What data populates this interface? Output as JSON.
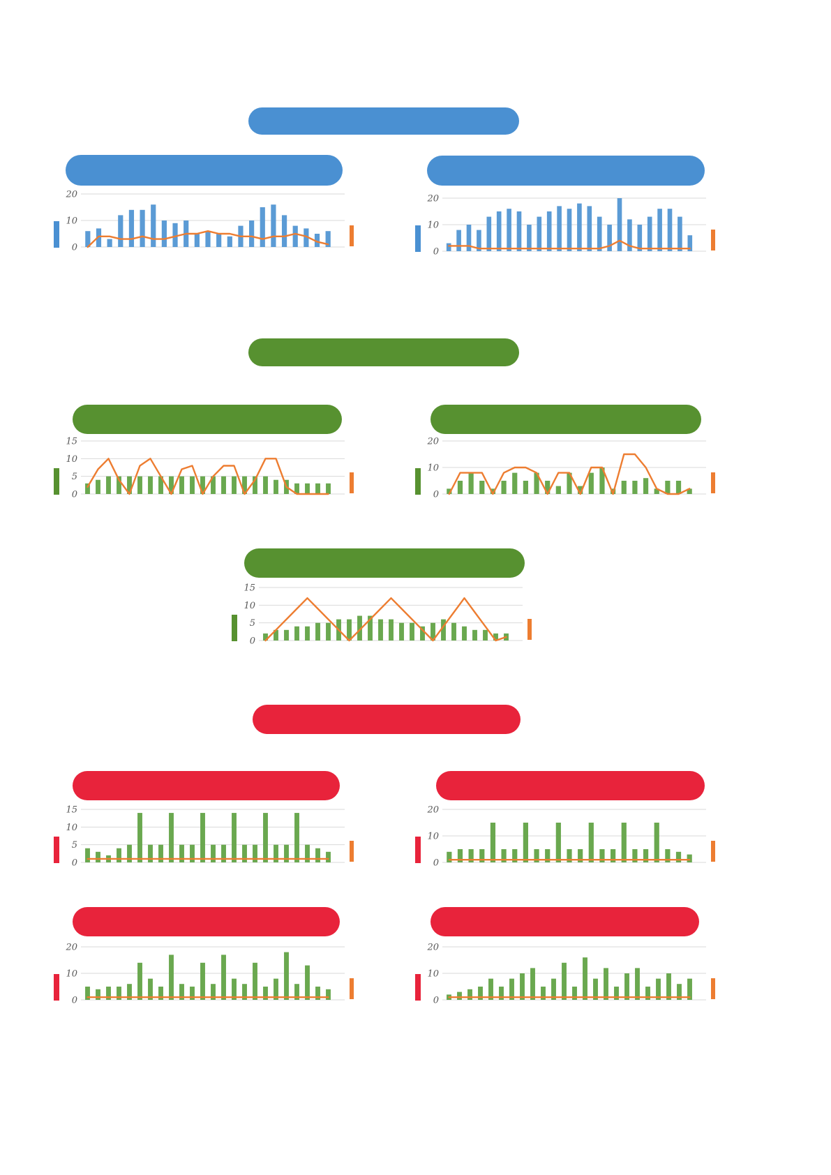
{
  "colors": {
    "blue_pill": "#4a90d2",
    "green_pill": "#579130",
    "red_pill": "#e8233b",
    "bar_blue": "#5b9bd5",
    "bar_green": "#6aa84f",
    "line_orange": "#ed7d31",
    "grid": "#d9d9d9",
    "axis_text": "#595959"
  },
  "sections": [
    {
      "id": "blue-section",
      "main_pill_color": "#4a90d2",
      "sub_pill_colors": [
        "#4a90d2",
        "#4a90d2"
      ]
    },
    {
      "id": "green-section",
      "main_pill_color": "#579130",
      "sub_pill_colors": [
        "#579130",
        "#579130"
      ]
    },
    {
      "id": "green-single-section",
      "main_pill_color": "#579130",
      "sub_pill_colors": []
    },
    {
      "id": "red-section",
      "main_pill_color": "#e8233b",
      "sub_pill_colors": [
        "#e8233b",
        "#e8233b",
        "#e8233b",
        "#e8233b"
      ]
    }
  ],
  "chart_data": [
    {
      "type": "bar",
      "position": "blue-row-left",
      "ymax": 20,
      "yticks": [
        0,
        10,
        20
      ],
      "ytick_labels": [
        "0",
        "10",
        "20"
      ],
      "grid": true,
      "bar_color": "#5b9bd5",
      "line_color": "#ed7d31",
      "left_swatch": "#4a90d2",
      "right_swatch": "#ed7d31",
      "series": [
        {
          "name": "bars",
          "kind": "bar",
          "values": [
            6,
            7,
            3,
            12,
            14,
            14,
            16,
            10,
            9,
            10,
            5,
            6,
            5,
            4,
            8,
            10,
            15,
            16,
            12,
            8,
            7,
            5,
            6
          ]
        },
        {
          "name": "line",
          "kind": "line",
          "values": [
            0,
            4,
            4,
            3,
            3,
            4,
            3,
            3,
            4,
            5,
            5,
            6,
            5,
            5,
            4,
            4,
            3,
            4,
            4,
            5,
            4,
            2,
            1
          ]
        }
      ]
    },
    {
      "type": "bar",
      "position": "blue-row-right",
      "ymax": 20,
      "yticks": [
        0,
        10,
        20
      ],
      "ytick_labels": [
        "0",
        "10",
        "20"
      ],
      "grid": true,
      "bar_color": "#5b9bd5",
      "line_color": "#ed7d31",
      "left_swatch": "#4a90d2",
      "right_swatch": "#ed7d31",
      "series": [
        {
          "name": "bars",
          "kind": "bar",
          "values": [
            3,
            8,
            10,
            8,
            13,
            15,
            16,
            15,
            10,
            13,
            15,
            17,
            16,
            18,
            17,
            13,
            10,
            20,
            12,
            10,
            13,
            16,
            16,
            13,
            6
          ]
        },
        {
          "name": "line",
          "kind": "line",
          "values": [
            2,
            2,
            2,
            1,
            1,
            1,
            1,
            1,
            1,
            1,
            1,
            1,
            1,
            1,
            1,
            1,
            2,
            4,
            2,
            1,
            1,
            1,
            1,
            1,
            1
          ]
        }
      ]
    },
    {
      "type": "bar",
      "position": "green-row-left",
      "ymax": 15,
      "yticks": [
        0,
        5,
        10,
        15
      ],
      "ytick_labels": [
        "0",
        "5",
        "10",
        "15"
      ],
      "grid": true,
      "bar_color": "#6aa84f",
      "line_color": "#ed7d31",
      "left_swatch": "#579130",
      "right_swatch": "#ed7d31",
      "series": [
        {
          "name": "bars",
          "kind": "bar",
          "values": [
            3,
            4,
            5,
            5,
            5,
            5,
            5,
            5,
            5,
            5,
            5,
            5,
            5,
            5,
            5,
            5,
            5,
            5,
            4,
            4,
            3,
            3,
            3,
            3
          ]
        },
        {
          "name": "line",
          "kind": "line",
          "values": [
            2,
            7,
            10,
            4,
            0,
            8,
            10,
            5,
            0,
            7,
            8,
            0,
            5,
            8,
            8,
            0,
            4,
            10,
            10,
            2,
            0,
            0,
            0,
            0
          ]
        }
      ]
    },
    {
      "type": "bar",
      "position": "green-row-right",
      "ymax": 20,
      "yticks": [
        0,
        10,
        20
      ],
      "ytick_labels": [
        "0",
        "10",
        "20"
      ],
      "grid": true,
      "bar_color": "#6aa84f",
      "line_color": "#ed7d31",
      "left_swatch": "#579130",
      "right_swatch": "#ed7d31",
      "series": [
        {
          "name": "bars",
          "kind": "bar",
          "values": [
            2,
            5,
            8,
            5,
            2,
            5,
            8,
            5,
            8,
            5,
            3,
            8,
            3,
            8,
            10,
            2,
            5,
            5,
            6,
            2,
            5,
            5,
            2
          ]
        },
        {
          "name": "line",
          "kind": "line",
          "values": [
            0,
            8,
            8,
            8,
            0,
            8,
            10,
            10,
            8,
            0,
            8,
            8,
            0,
            10,
            10,
            0,
            15,
            15,
            10,
            2,
            0,
            0,
            2
          ]
        }
      ]
    },
    {
      "type": "bar",
      "position": "green-single-center",
      "ymax": 15,
      "yticks": [
        0,
        5,
        10,
        15
      ],
      "ytick_labels": [
        "0",
        "5",
        "10",
        "15"
      ],
      "grid": true,
      "bar_color": "#6aa84f",
      "line_color": "#ed7d31",
      "left_swatch": "#579130",
      "right_swatch": "#ed7d31",
      "series": [
        {
          "name": "bars",
          "kind": "bar",
          "values": [
            2,
            3,
            3,
            4,
            4,
            5,
            5,
            6,
            6,
            7,
            7,
            6,
            6,
            5,
            5,
            4,
            5,
            6,
            5,
            4,
            3,
            3,
            2,
            2
          ]
        },
        {
          "name": "line",
          "kind": "line",
          "values": [
            0,
            3,
            6,
            9,
            12,
            9,
            6,
            3,
            0,
            3,
            6,
            9,
            12,
            9,
            6,
            3,
            0,
            4,
            8,
            12,
            8,
            4,
            0,
            1
          ]
        }
      ]
    },
    {
      "type": "bar",
      "position": "red-row1-left",
      "ymax": 15,
      "yticks": [
        0,
        5,
        10,
        15
      ],
      "ytick_labels": [
        "0",
        "5",
        "10",
        "15"
      ],
      "grid": true,
      "bar_color": "#6aa84f",
      "line_color": "#ed7d31",
      "left_swatch": "#e8233b",
      "right_swatch": "#ed7d31",
      "series": [
        {
          "name": "bars",
          "kind": "bar",
          "values": [
            4,
            3,
            2,
            4,
            5,
            14,
            5,
            5,
            14,
            5,
            5,
            14,
            5,
            5,
            14,
            5,
            5,
            14,
            5,
            5,
            14,
            5,
            4,
            3
          ]
        },
        {
          "name": "line",
          "kind": "line",
          "values": [
            1,
            1,
            1,
            1,
            1,
            1,
            1,
            1,
            1,
            1,
            1,
            1,
            1,
            1,
            1,
            1,
            1,
            1,
            1,
            1,
            1,
            1,
            1,
            1
          ]
        }
      ]
    },
    {
      "type": "bar",
      "position": "red-row1-right",
      "ymax": 20,
      "yticks": [
        0,
        10,
        20
      ],
      "ytick_labels": [
        "0",
        "10",
        "20"
      ],
      "grid": true,
      "bar_color": "#6aa84f",
      "line_color": "#ed7d31",
      "left_swatch": "#e8233b",
      "right_swatch": "#ed7d31",
      "series": [
        {
          "name": "bars",
          "kind": "bar",
          "values": [
            4,
            5,
            5,
            5,
            15,
            5,
            5,
            15,
            5,
            5,
            15,
            5,
            5,
            15,
            5,
            5,
            15,
            5,
            5,
            15,
            5,
            4,
            3
          ]
        },
        {
          "name": "line",
          "kind": "line",
          "values": [
            1,
            1,
            1,
            1,
            1,
            1,
            1,
            1,
            1,
            1,
            1,
            1,
            1,
            1,
            1,
            1,
            1,
            1,
            1,
            1,
            1,
            1,
            1
          ]
        }
      ]
    },
    {
      "type": "bar",
      "position": "red-row2-left",
      "ymax": 20,
      "yticks": [
        0,
        10,
        20
      ],
      "ytick_labels": [
        "0",
        "10",
        "20"
      ],
      "grid": true,
      "bar_color": "#6aa84f",
      "line_color": "#ed7d31",
      "left_swatch": "#e8233b",
      "right_swatch": "#ed7d31",
      "series": [
        {
          "name": "bars",
          "kind": "bar",
          "values": [
            5,
            4,
            5,
            5,
            6,
            14,
            8,
            5,
            17,
            6,
            5,
            14,
            6,
            17,
            8,
            6,
            14,
            5,
            8,
            18,
            6,
            13,
            5,
            4
          ]
        },
        {
          "name": "line",
          "kind": "line",
          "values": [
            1,
            1,
            1,
            1,
            1,
            1,
            1,
            1,
            1,
            1,
            1,
            1,
            1,
            1,
            1,
            1,
            1,
            1,
            1,
            1,
            1,
            1,
            1,
            1
          ]
        }
      ]
    },
    {
      "type": "bar",
      "position": "red-row2-right",
      "ymax": 20,
      "yticks": [
        0,
        10,
        20
      ],
      "ytick_labels": [
        "0",
        "10",
        "20"
      ],
      "grid": true,
      "bar_color": "#6aa84f",
      "line_color": "#ed7d31",
      "left_swatch": "#e8233b",
      "right_swatch": "#ed7d31",
      "series": [
        {
          "name": "bars",
          "kind": "bar",
          "values": [
            2,
            3,
            4,
            5,
            8,
            5,
            8,
            10,
            12,
            5,
            8,
            14,
            5,
            16,
            8,
            12,
            5,
            10,
            12,
            5,
            8,
            10,
            6,
            8
          ]
        },
        {
          "name": "line",
          "kind": "line",
          "values": [
            1,
            1,
            1,
            1,
            1,
            1,
            1,
            1,
            1,
            1,
            1,
            1,
            1,
            1,
            1,
            1,
            1,
            1,
            1,
            1,
            1,
            1,
            1,
            1
          ]
        }
      ]
    }
  ]
}
